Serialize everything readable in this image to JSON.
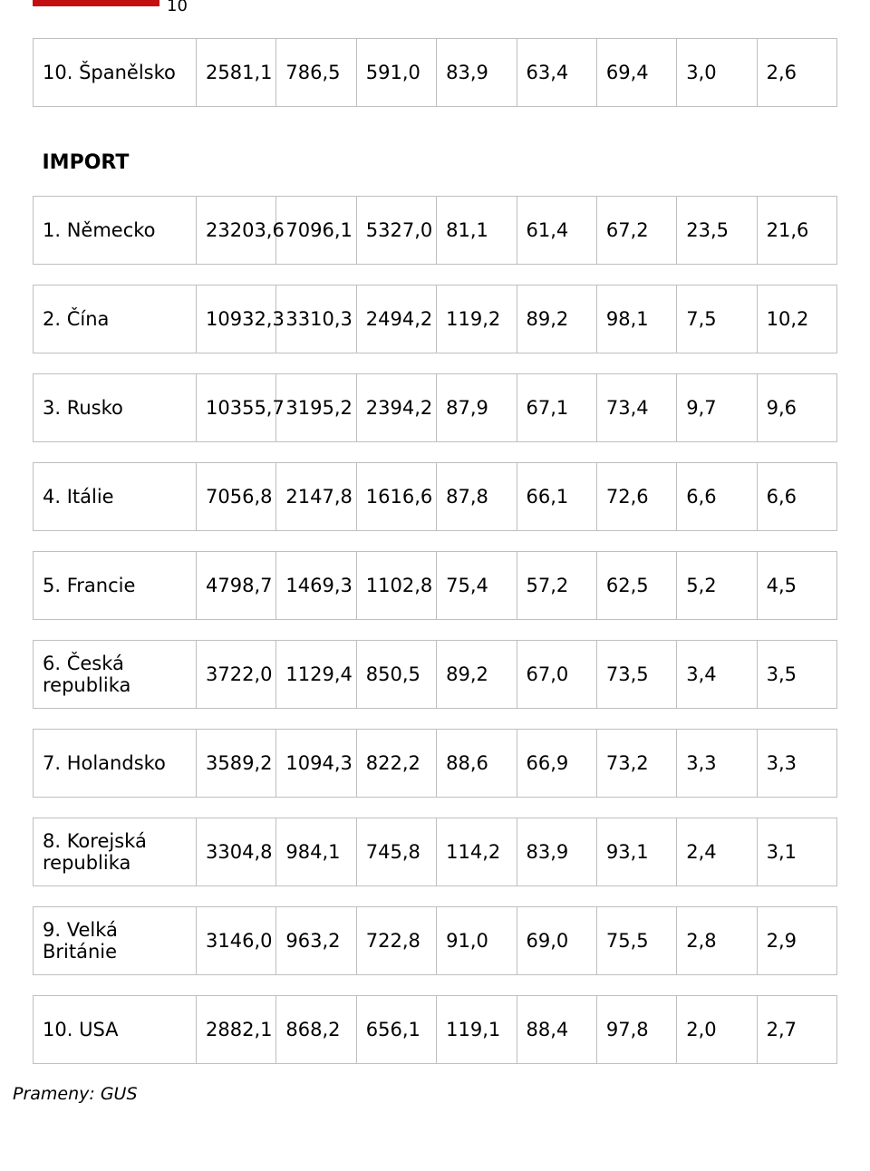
{
  "page_number": "10",
  "rule_color": "#c40f11",
  "cell_border_color": "#bfbfbf",
  "font_size_cell": 21,
  "font_size_section": 22,
  "section_labels": {
    "import": "IMPORT"
  },
  "rows_top": [
    {
      "label": "10. Španělsko",
      "values": [
        "2581,1",
        "786,5",
        "591,0",
        "83,9",
        "63,4",
        "69,4",
        "3,0",
        "2,6"
      ]
    }
  ],
  "rows_import": [
    {
      "label": "1. Německo",
      "values": [
        "23203,6",
        "7096,1",
        "5327,0",
        "81,1",
        "61,4",
        "67,2",
        "23,5",
        "21,6"
      ]
    },
    {
      "label": "2. Čína",
      "values": [
        "10932,3",
        "3310,3",
        "2494,2",
        "119,2",
        "89,2",
        "98,1",
        "7,5",
        "10,2"
      ]
    },
    {
      "label": "3. Rusko",
      "values": [
        "10355,7",
        "3195,2",
        "2394,2",
        "87,9",
        "67,1",
        "73,4",
        "9,7",
        "9,6"
      ]
    },
    {
      "label": "4. Itálie",
      "values": [
        "7056,8",
        "2147,8",
        "1616,6",
        "87,8",
        "66,1",
        "72,6",
        "6,6",
        "6,6"
      ]
    },
    {
      "label": "5. Francie",
      "values": [
        "4798,7",
        "1469,3",
        "1102,8",
        "75,4",
        "57,2",
        "62,5",
        "5,2",
        "4,5"
      ]
    },
    {
      "label": "6. Česká republika",
      "values": [
        "3722,0",
        "1129,4",
        "850,5",
        "89,2",
        "67,0",
        "73,5",
        "3,4",
        "3,5"
      ]
    },
    {
      "label": "7. Holandsko",
      "values": [
        "3589,2",
        "1094,3",
        "822,2",
        "88,6",
        "66,9",
        "73,2",
        "3,3",
        "3,3"
      ]
    },
    {
      "label": "8. Korejská republika",
      "values": [
        "3304,8",
        "984,1",
        "745,8",
        "114,2",
        "83,9",
        "93,1",
        "2,4",
        "3,1"
      ]
    },
    {
      "label": "9. Velká Británie",
      "values": [
        "3146,0",
        "963,2",
        "722,8",
        "91,0",
        "69,0",
        "75,5",
        "2,8",
        "2,9"
      ]
    },
    {
      "label": "10. USA",
      "values": [
        "2882,1",
        "868,2",
        "656,1",
        "119,1",
        "88,4",
        "97,8",
        "2,0",
        "2,7"
      ]
    }
  ],
  "source_line": "Prameny: GUS"
}
